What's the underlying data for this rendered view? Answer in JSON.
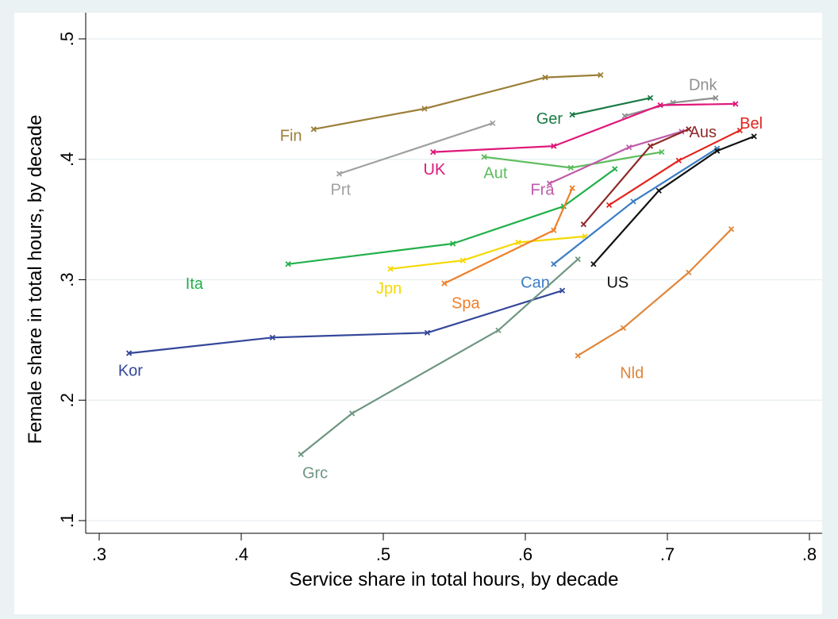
{
  "chart_data": {
    "type": "line",
    "title": "",
    "xlabel": "Service share in total hours, by decade",
    "ylabel": "Female share in total hours, by decade",
    "xlim": [
      0.3,
      0.8
    ],
    "ylim": [
      0.1,
      0.5
    ],
    "xticks": [
      0.3,
      0.4,
      0.5,
      0.6,
      0.7,
      0.8
    ],
    "xtick_labels": [
      ".3",
      ".4",
      ".5",
      ".6",
      ".7",
      ".8"
    ],
    "yticks": [
      0.1,
      0.2,
      0.3,
      0.4,
      0.5
    ],
    "ytick_labels": [
      ".1",
      ".2",
      ".3",
      ".4",
      ".5"
    ],
    "grid": true,
    "legend": "none",
    "series": [
      {
        "name": "Fin",
        "color": "#9b7f38",
        "label_at": [
          0.435,
          0.42
        ],
        "points": [
          [
            0.451,
            0.425
          ],
          [
            0.529,
            0.442
          ],
          [
            0.614,
            0.468
          ],
          [
            0.653,
            0.47
          ]
        ]
      },
      {
        "name": "Dnk",
        "color": "#8f8f8f",
        "label_at": [
          0.725,
          0.462
        ],
        "points": [
          [
            0.67,
            0.436
          ],
          [
            0.704,
            0.447
          ],
          [
            0.734,
            0.451
          ]
        ]
      },
      {
        "name": "Ger",
        "color": "#1a7a44",
        "label_at": [
          0.617,
          0.434
        ],
        "points": [
          [
            0.633,
            0.437
          ],
          [
            0.688,
            0.451
          ]
        ]
      },
      {
        "name": "Prt",
        "color": "#a0a0a0",
        "label_at": [
          0.47,
          0.375
        ],
        "points": [
          [
            0.469,
            0.388
          ],
          [
            0.577,
            0.43
          ]
        ]
      },
      {
        "name": "UK",
        "color": "#e0177a",
        "label_at": [
          0.536,
          0.392
        ],
        "points": [
          [
            0.535,
            0.406
          ],
          [
            0.62,
            0.411
          ],
          [
            0.695,
            0.445
          ],
          [
            0.748,
            0.446
          ]
        ]
      },
      {
        "name": "Aut",
        "color": "#5cbd5c",
        "label_at": [
          0.579,
          0.389
        ],
        "points": [
          [
            0.571,
            0.402
          ],
          [
            0.632,
            0.393
          ],
          [
            0.696,
            0.406
          ]
        ]
      },
      {
        "name": "Fra",
        "color": "#bf5aa8",
        "label_at": [
          0.612,
          0.375
        ],
        "points": [
          [
            0.617,
            0.38
          ],
          [
            0.673,
            0.41
          ],
          [
            0.71,
            0.423
          ]
        ]
      },
      {
        "name": "Aus",
        "color": "#8e2a2a",
        "label_at": [
          0.725,
          0.423
        ],
        "points": [
          [
            0.641,
            0.346
          ],
          [
            0.688,
            0.411
          ],
          [
            0.715,
            0.425
          ]
        ]
      },
      {
        "name": "Bel",
        "color": "#e3231e",
        "label_at": [
          0.759,
          0.43
        ],
        "points": [
          [
            0.659,
            0.362
          ],
          [
            0.708,
            0.399
          ],
          [
            0.751,
            0.424
          ]
        ]
      },
      {
        "name": "Ita",
        "color": "#22b04b",
        "label_at": [
          0.367,
          0.297
        ],
        "points": [
          [
            0.433,
            0.313
          ],
          [
            0.549,
            0.33
          ],
          [
            0.627,
            0.361
          ],
          [
            0.663,
            0.392
          ]
        ]
      },
      {
        "name": "Jpn",
        "color": "#f5d800",
        "label_at": [
          0.504,
          0.293
        ],
        "points": [
          [
            0.505,
            0.309
          ],
          [
            0.556,
            0.316
          ],
          [
            0.595,
            0.331
          ],
          [
            0.642,
            0.336
          ]
        ]
      },
      {
        "name": "Spa",
        "color": "#f07f2a",
        "label_at": [
          0.558,
          0.281
        ],
        "points": [
          [
            0.543,
            0.297
          ],
          [
            0.62,
            0.341
          ],
          [
            0.633,
            0.376
          ]
        ]
      },
      {
        "name": "Can",
        "color": "#3b7dc4",
        "label_at": [
          0.607,
          0.298
        ],
        "points": [
          [
            0.62,
            0.313
          ],
          [
            0.676,
            0.365
          ],
          [
            0.735,
            0.409
          ]
        ]
      },
      {
        "name": "US",
        "color": "#111111",
        "label_at": [
          0.665,
          0.298
        ],
        "points": [
          [
            0.648,
            0.313
          ],
          [
            0.694,
            0.374
          ],
          [
            0.735,
            0.407
          ],
          [
            0.761,
            0.419
          ]
        ]
      },
      {
        "name": "Kor",
        "color": "#34479a",
        "label_at": [
          0.322,
          0.225
        ],
        "points": [
          [
            0.321,
            0.239
          ],
          [
            0.422,
            0.252
          ],
          [
            0.531,
            0.256
          ],
          [
            0.626,
            0.291
          ]
        ]
      },
      {
        "name": "Grc",
        "color": "#6e9680",
        "label_at": [
          0.452,
          0.14
        ],
        "points": [
          [
            0.442,
            0.155
          ],
          [
            0.478,
            0.189
          ],
          [
            0.581,
            0.258
          ],
          [
            0.637,
            0.317
          ]
        ]
      },
      {
        "name": "Nld",
        "color": "#e0863a",
        "label_at": [
          0.675,
          0.223
        ],
        "points": [
          [
            0.637,
            0.237
          ],
          [
            0.669,
            0.26
          ],
          [
            0.715,
            0.306
          ],
          [
            0.745,
            0.342
          ]
        ]
      }
    ]
  }
}
